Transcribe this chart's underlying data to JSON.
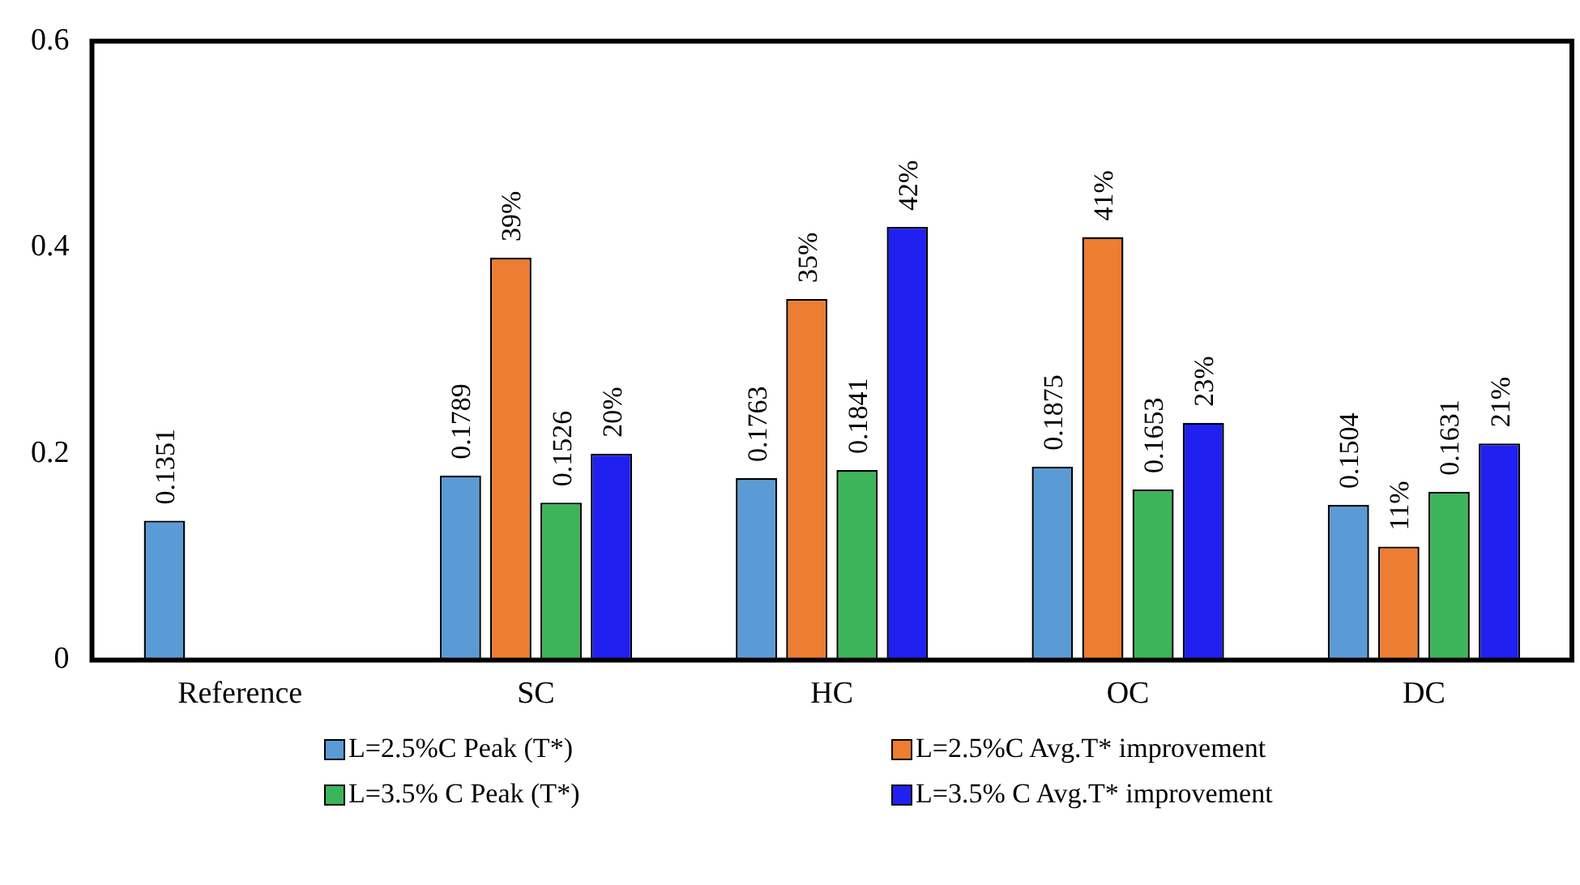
{
  "chart_data": {
    "type": "bar",
    "categories": [
      "Reference",
      "SC",
      "HC",
      "OC",
      "DC"
    ],
    "series": [
      {
        "name": "L=2.5%C Peak (T*)",
        "color": "#5b9bd5",
        "values": [
          0.1351,
          0.1789,
          0.1763,
          0.1875,
          0.1504
        ]
      },
      {
        "name": "L=2.5%C Avg.T* improvement",
        "color": "#ed7d31",
        "values": [
          null,
          0.39,
          0.35,
          0.41,
          0.11
        ],
        "value_labels": [
          null,
          "39%",
          "35%",
          "41%",
          "11%"
        ]
      },
      {
        "name": "L=3.5% C Peak (T*)",
        "color": "#3cb45a",
        "values": [
          null,
          0.1526,
          0.1841,
          0.1653,
          0.1631
        ]
      },
      {
        "name": "L=3.5% C Avg.T* improvement",
        "color": "#2020f0",
        "values": [
          null,
          0.2,
          0.42,
          0.23,
          0.21
        ],
        "value_labels": [
          null,
          "20%",
          "42%",
          "23%",
          "21%"
        ]
      }
    ],
    "ylim": [
      0,
      0.6
    ],
    "yticks": [
      0,
      0.2,
      0.4,
      0.6
    ],
    "grid": false,
    "legend": "bottom",
    "data_labels": true
  }
}
